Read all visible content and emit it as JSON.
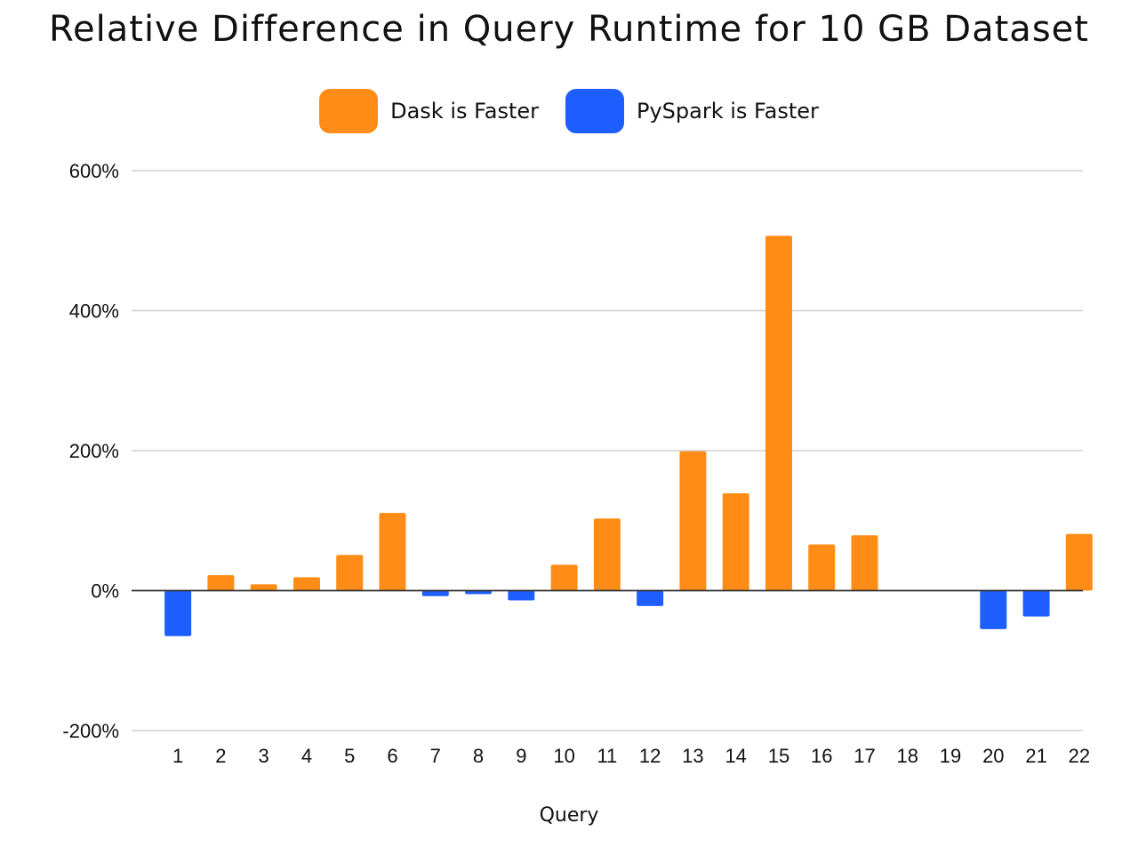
{
  "colors": {
    "positive": "#FF8C16",
    "negative": "#1E5EFF",
    "grid": "#cfcfcf",
    "zero": "#333333"
  },
  "chart_data": {
    "type": "bar",
    "title": "Relative Difference in Query Runtime for 10 GB Dataset",
    "xlabel": "Query",
    "ylabel": "",
    "ylim": [
      -200,
      600
    ],
    "yticks": [
      -200,
      0,
      200,
      400,
      600
    ],
    "ytick_labels": [
      "-200%",
      "0%",
      "200%",
      "400%",
      "600%"
    ],
    "grid": true,
    "legend_position": "top-center",
    "legend": [
      {
        "label": "Dask is Faster",
        "color": "#FF8C16"
      },
      {
        "label": "PySpark is Faster",
        "color": "#1E5EFF"
      }
    ],
    "categories": [
      "1",
      "2",
      "3",
      "4",
      "5",
      "6",
      "7",
      "8",
      "9",
      "10",
      "11",
      "12",
      "13",
      "14",
      "15",
      "16",
      "17",
      "18",
      "19",
      "20",
      "21",
      "22"
    ],
    "values": [
      -65,
      22,
      9,
      19,
      51,
      111,
      -8,
      -5,
      -14,
      37,
      103,
      -22,
      199,
      139,
      507,
      66,
      79,
      0,
      0,
      -55,
      -37,
      81
    ]
  }
}
